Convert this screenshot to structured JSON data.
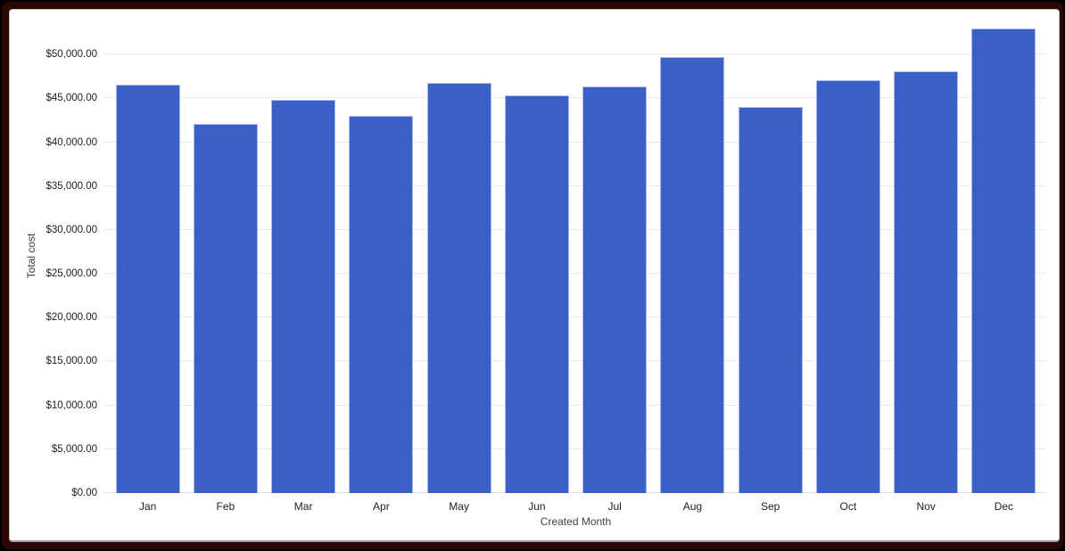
{
  "frame": {
    "outer_color": "#000000",
    "border_color": "#2b0707",
    "card_background": "#ffffff"
  },
  "chart_data": {
    "type": "bar",
    "title": "",
    "categories": [
      "Jan",
      "Feb",
      "Mar",
      "Apr",
      "May",
      "Jun",
      "Jul",
      "Aug",
      "Sep",
      "Oct",
      "Nov",
      "Dec"
    ],
    "values": [
      46600,
      42100,
      44800,
      43000,
      46800,
      45300,
      46400,
      49700,
      44000,
      47100,
      48100,
      53000
    ],
    "xlabel": "Created Month",
    "ylabel": "Total cost",
    "ylim": [
      0,
      55000
    ],
    "ytick_step": 5000,
    "y_ticks": [
      {
        "v": 0,
        "label": "$0.00"
      },
      {
        "v": 5000,
        "label": "$5,000.00"
      },
      {
        "v": 10000,
        "label": "$10,000.00"
      },
      {
        "v": 15000,
        "label": "$15,000.00"
      },
      {
        "v": 20000,
        "label": "$20,000.00"
      },
      {
        "v": 25000,
        "label": "$25,000.00"
      },
      {
        "v": 30000,
        "label": "$30,000.00"
      },
      {
        "v": 35000,
        "label": "$35,000.00"
      },
      {
        "v": 40000,
        "label": "$40,000.00"
      },
      {
        "v": 45000,
        "label": "$45,000.00"
      },
      {
        "v": 50000,
        "label": "$50,000.00"
      }
    ],
    "bar_color": "#3a5fc7",
    "bar_stroke": "#a9b9e8",
    "gridline_color": "#e9e9e9",
    "grid": true,
    "legend": "none"
  }
}
